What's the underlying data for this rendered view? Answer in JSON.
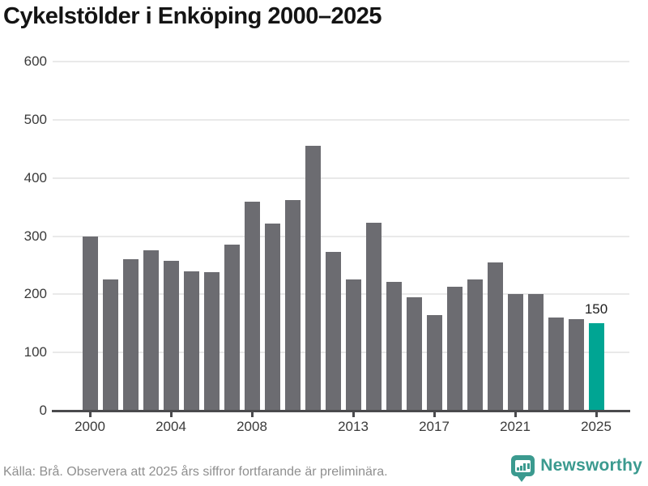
{
  "chart": {
    "title": "Cykelstölder i Enköping 2000–2025",
    "source_note": "Källa: Brå. Observera att 2025 års siffror fortfarande är preliminära."
  },
  "chart_data": {
    "type": "bar",
    "title": "Cykelstölder i Enköping 2000–2025",
    "categories": [
      2000,
      2001,
      2002,
      2003,
      2004,
      2005,
      2006,
      2007,
      2008,
      2009,
      2010,
      2011,
      2012,
      2013,
      2014,
      2015,
      2016,
      2017,
      2018,
      2019,
      2020,
      2021,
      2022,
      2023,
      2024,
      2025
    ],
    "values": [
      299,
      225,
      260,
      275,
      257,
      240,
      238,
      286,
      359,
      322,
      362,
      455,
      273,
      225,
      323,
      222,
      195,
      164,
      213,
      225,
      255,
      200,
      200,
      160,
      158,
      150
    ],
    "highlight_index": 25,
    "highlight_value_label": "150",
    "xlabel": "",
    "ylabel": "",
    "ylim": [
      0,
      600
    ],
    "y_ticks": [
      0,
      100,
      200,
      300,
      400,
      500,
      600
    ],
    "x_tick_years": [
      2000,
      2004,
      2008,
      2013,
      2017,
      2021,
      2025
    ],
    "grid": true,
    "legend": "none",
    "bar_color": "#6c6c71",
    "highlight_color": "#00a593",
    "axis_color": "#4a4a4d",
    "gridline_color": "#e9e9e9"
  },
  "branding": {
    "logo_text": "Newsworthy",
    "logo_color": "#3b9a8f",
    "logo_mark_icon": "speech-bubble-bar-chart-icon"
  }
}
